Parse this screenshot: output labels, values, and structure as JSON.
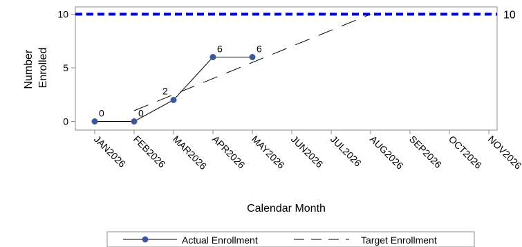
{
  "chart_data": {
    "type": "line",
    "title": "",
    "xlabel": "Calendar Month",
    "ylabel_lines": [
      "Number",
      "Enrolled"
    ],
    "categories": [
      "JAN2026",
      "FEB2026",
      "MAR2026",
      "APR2026",
      "MAY2026",
      "JUN2026",
      "JUL2026",
      "AUG2026",
      "SEP2026",
      "OCT2026",
      "NOV2026"
    ],
    "ylim": [
      0,
      21
    ],
    "yticks": [
      0,
      5,
      10,
      15,
      20
    ],
    "grid": false,
    "series": [
      {
        "name": "Actual Enrollment",
        "style": "solid-with-markers",
        "color": "#3b5998",
        "x": [
          "JAN2026",
          "FEB2026",
          "MAR2026",
          "APR2026",
          "MAY2026"
        ],
        "values": [
          0,
          0,
          2,
          6,
          6
        ],
        "labels": [
          "0",
          "0",
          "2",
          "6",
          "6"
        ]
      },
      {
        "name": "Target Enrollment",
        "style": "dashed",
        "color": "#000000",
        "x": [
          "FEB2026",
          "AUG2026"
        ],
        "values": [
          1,
          10
        ]
      }
    ],
    "reference_line": {
      "value": 10,
      "label": "10",
      "color": "#0000ee",
      "style": "dashed"
    },
    "legend": {
      "placement": "bottom-center"
    }
  }
}
